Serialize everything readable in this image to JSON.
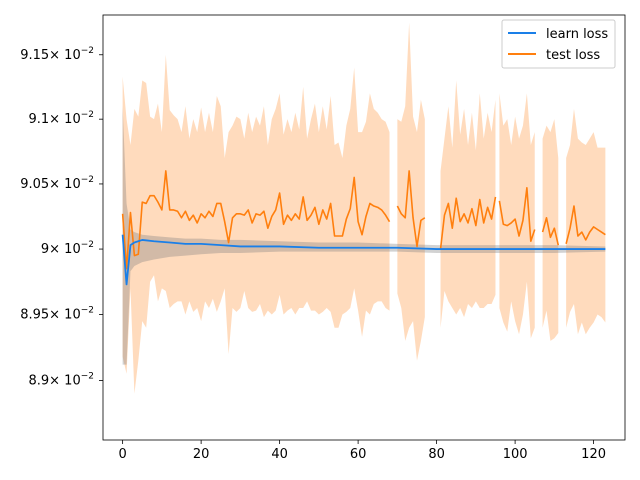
{
  "chart_data": {
    "type": "line",
    "title": "",
    "xlabel": "",
    "ylabel": "",
    "xlim": [
      -5,
      128
    ],
    "ylim": [
      0.08855,
      0.09181
    ],
    "y_scale": "log",
    "grid": false,
    "legend_position": "top-right",
    "x_ticks": [
      {
        "value": 0,
        "label": "0"
      },
      {
        "value": 20,
        "label": "20"
      },
      {
        "value": 40,
        "label": "40"
      },
      {
        "value": 60,
        "label": "60"
      },
      {
        "value": 80,
        "label": "80"
      },
      {
        "value": 100,
        "label": "100"
      },
      {
        "value": 120,
        "label": "120"
      }
    ],
    "y_ticks": [
      {
        "value": 0.089,
        "mantissa": "8.9"
      },
      {
        "value": 0.0895,
        "mantissa": "8.95"
      },
      {
        "value": 0.09,
        "mantissa": "9"
      },
      {
        "value": 0.0905,
        "mantissa": "9.05"
      },
      {
        "value": 0.091,
        "mantissa": "9.1"
      },
      {
        "value": 0.0915,
        "mantissa": "9.15"
      }
    ],
    "y_tick_suffix": "× 10",
    "y_tick_exponent": "−2",
    "series": [
      {
        "name": "learn loss",
        "color": "#1f77b4",
        "line_color": "#1a7fe8",
        "band_color": "#7f7f7f",
        "x": [
          0,
          1,
          2,
          3,
          5,
          8,
          12,
          16,
          20,
          25,
          30,
          40,
          50,
          60,
          70,
          80,
          90,
          100,
          110,
          123
        ],
        "y": [
          0.09011,
          0.08973,
          0.09003,
          0.09005,
          0.09007,
          0.09006,
          0.09005,
          0.09004,
          0.09004,
          0.09003,
          0.09002,
          0.09002,
          0.09001,
          0.09001,
          0.09001,
          0.09,
          0.09,
          0.09,
          0.09,
          0.09
        ],
        "upper": [
          0.0911,
          0.09035,
          0.09015,
          0.09013,
          0.09011,
          0.0901,
          0.09009,
          0.09008,
          0.09008,
          0.09007,
          0.09007,
          0.09006,
          0.09005,
          0.09005,
          0.09004,
          0.09003,
          0.09003,
          0.09003,
          0.09003,
          0.09002
        ],
        "lower": [
          0.08912,
          0.08912,
          0.08983,
          0.08987,
          0.0899,
          0.08992,
          0.08994,
          0.08995,
          0.08996,
          0.08997,
          0.08997,
          0.08998,
          0.08998,
          0.08998,
          0.08998,
          0.08997,
          0.08997,
          0.08997,
          0.08997,
          0.08998
        ]
      },
      {
        "name": "test loss",
        "color": "#ff7f0e",
        "band_color": "#ffbe86",
        "segments": [
          {
            "x": [
              0,
              1,
              2,
              3,
              4,
              5,
              6,
              7,
              8,
              9,
              10,
              11,
              12,
              13,
              14,
              15,
              16,
              17,
              18,
              19,
              20,
              21,
              22,
              23,
              24,
              25,
              26,
              27,
              28,
              29,
              30,
              31,
              32,
              33,
              34,
              35,
              36,
              37,
              38,
              39,
              40,
              41,
              42,
              43,
              44,
              45,
              46,
              47,
              48,
              49,
              50,
              51,
              52,
              53,
              54,
              55,
              56,
              57,
              58,
              59,
              60,
              61,
              62,
              63,
              64,
              65,
              66,
              67,
              68
            ],
            "y": [
              0.09027,
              0.08985,
              0.09028,
              0.08995,
              0.08996,
              0.09036,
              0.09035,
              0.09041,
              0.09041,
              0.09036,
              0.0903,
              0.0906,
              0.0903,
              0.0903,
              0.09029,
              0.09024,
              0.09029,
              0.09022,
              0.09026,
              0.0902,
              0.09027,
              0.09024,
              0.09029,
              0.09025,
              0.09035,
              0.09035,
              0.09021,
              0.09005,
              0.09024,
              0.09027,
              0.09027,
              0.09026,
              0.0903,
              0.0902,
              0.09027,
              0.09026,
              0.09029,
              0.09016,
              0.09025,
              0.0903,
              0.09043,
              0.09019,
              0.09026,
              0.09022,
              0.09027,
              0.09023,
              0.0904,
              0.09022,
              0.09026,
              0.09032,
              0.09019,
              0.0903,
              0.09023,
              0.09035,
              0.0901,
              0.0901,
              0.0901,
              0.09023,
              0.09031,
              0.09055,
              0.09021,
              0.09011,
              0.09025,
              0.09035,
              0.09033,
              0.09032,
              0.0903,
              0.09026,
              0.09021
            ],
            "upper": [
              0.09133,
              0.091,
              0.0908,
              0.09108,
              0.09102,
              0.0913,
              0.09128,
              0.09102,
              0.091,
              0.09112,
              0.0909,
              0.0915,
              0.09107,
              0.09103,
              0.091,
              0.0909,
              0.0911,
              0.09085,
              0.091,
              0.0909,
              0.09109,
              0.0909,
              0.09105,
              0.0909,
              0.09118,
              0.0911,
              0.0907,
              0.0909,
              0.09095,
              0.09102,
              0.091,
              0.09085,
              0.09105,
              0.0909,
              0.09102,
              0.09095,
              0.0911,
              0.0908,
              0.091,
              0.09108,
              0.0912,
              0.09088,
              0.091,
              0.0909,
              0.09105,
              0.09092,
              0.09125,
              0.09085,
              0.091,
              0.09112,
              0.0909,
              0.0911,
              0.09092,
              0.09118,
              0.0908,
              0.09082,
              0.0907,
              0.09095,
              0.09108,
              0.0914,
              0.0909,
              0.0909,
              0.09098,
              0.0912,
              0.09108,
              0.09105,
              0.091,
              0.09098,
              0.0909
            ],
            "lower": [
              0.08918,
              0.08905,
              0.0897,
              0.0889,
              0.08915,
              0.08945,
              0.0894,
              0.08975,
              0.0898,
              0.0896,
              0.0897,
              0.08968,
              0.08955,
              0.08958,
              0.0896,
              0.0896,
              0.0895,
              0.0896,
              0.08952,
              0.08955,
              0.08945,
              0.0896,
              0.08955,
              0.08962,
              0.08952,
              0.0896,
              0.0897,
              0.0892,
              0.08955,
              0.08952,
              0.08955,
              0.08968,
              0.08955,
              0.08952,
              0.08953,
              0.08958,
              0.08948,
              0.08953,
              0.0895,
              0.08953,
              0.08965,
              0.0895,
              0.08953,
              0.08955,
              0.0895,
              0.08955,
              0.08955,
              0.0896,
              0.08953,
              0.08953,
              0.0895,
              0.08952,
              0.08955,
              0.08952,
              0.0894,
              0.0894,
              0.0895,
              0.08952,
              0.08955,
              0.0897,
              0.08953,
              0.08933,
              0.08953,
              0.0895,
              0.08958,
              0.0896,
              0.0896,
              0.08955,
              0.08953
            ]
          },
          {
            "x": [
              70,
              71,
              72,
              73,
              74,
              75,
              76,
              77
            ],
            "y": [
              0.09033,
              0.09027,
              0.09024,
              0.0906,
              0.09024,
              0.09002,
              0.09022,
              0.09024
            ],
            "upper": [
              0.091,
              0.09098,
              0.0911,
              0.09175,
              0.09102,
              0.0909,
              0.09115,
              0.091
            ],
            "lower": [
              0.08966,
              0.08955,
              0.0893,
              0.0894,
              0.08945,
              0.08915,
              0.0893,
              0.08948
            ]
          },
          {
            "x": [
              81,
              82,
              83,
              84,
              85,
              86,
              87,
              88,
              89,
              90,
              91,
              92,
              93,
              94,
              95
            ],
            "y": [
              0.09,
              0.09026,
              0.09035,
              0.09016,
              0.09039,
              0.09021,
              0.09027,
              0.0902,
              0.09031,
              0.09018,
              0.09038,
              0.0902,
              0.09032,
              0.09023,
              0.0904
            ],
            "upper": [
              0.0906,
              0.09085,
              0.0911,
              0.09078,
              0.0913,
              0.09088,
              0.09108,
              0.0908,
              0.09105,
              0.09076,
              0.0912,
              0.09085,
              0.09105,
              0.0909,
              0.09115
            ],
            "lower": [
              0.0894,
              0.08968,
              0.0896,
              0.08955,
              0.0895,
              0.08955,
              0.08948,
              0.08958,
              0.08955,
              0.0896,
              0.08955,
              0.08955,
              0.08958,
              0.08958,
              0.08965
            ]
          },
          {
            "x": [
              96,
              97,
              98,
              99,
              100,
              101,
              102,
              103,
              104,
              105
            ],
            "y": [
              0.09037,
              0.09019,
              0.09018,
              0.0902,
              0.09023,
              0.0901,
              0.09022,
              0.09047,
              0.09006,
              0.09015
            ],
            "upper": [
              0.0912,
              0.09095,
              0.091,
              0.0908,
              0.09102,
              0.09085,
              0.09095,
              0.0912,
              0.0908,
              0.0909
            ],
            "lower": [
              0.08955,
              0.08944,
              0.08937,
              0.0896,
              0.08945,
              0.08935,
              0.0895,
              0.08975,
              0.08932,
              0.0894
            ]
          },
          {
            "x": [
              107,
              108,
              109,
              110,
              111
            ],
            "y": [
              0.09013,
              0.09024,
              0.09009,
              0.09016,
              0.09003
            ],
            "upper": [
              0.09085,
              0.09095,
              0.0909,
              0.091,
              0.0907
            ],
            "lower": [
              0.0894,
              0.08953,
              0.0893,
              0.08932,
              0.08936
            ]
          },
          {
            "x": [
              113,
              114,
              115,
              116,
              117,
              118,
              119,
              120,
              121,
              122,
              123
            ],
            "y": [
              0.09004,
              0.09016,
              0.09033,
              0.0901,
              0.09013,
              0.09007,
              0.09013,
              0.09017,
              0.09015,
              0.09013,
              0.09011
            ],
            "upper": [
              0.0907,
              0.0908,
              0.09108,
              0.09085,
              0.09082,
              0.0908,
              0.09085,
              0.0909,
              0.09078,
              0.09078,
              0.09078
            ],
            "lower": [
              0.0894,
              0.08952,
              0.08958,
              0.08935,
              0.08944,
              0.08935,
              0.0894,
              0.08944,
              0.0895,
              0.08948,
              0.08944
            ]
          }
        ]
      }
    ]
  }
}
